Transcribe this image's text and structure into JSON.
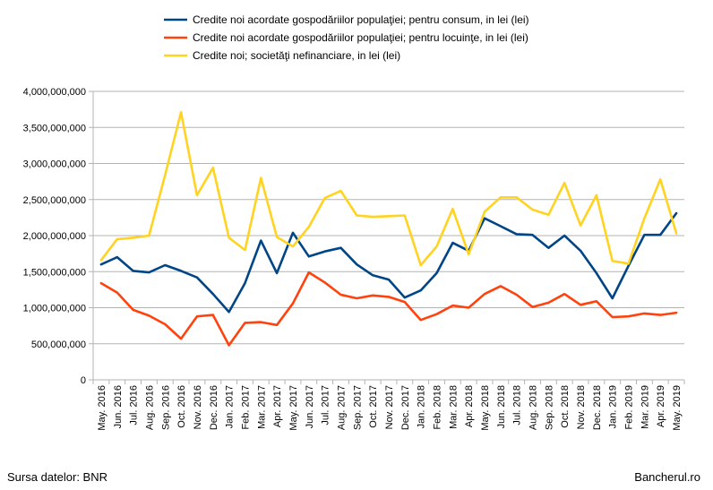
{
  "chart_data": {
    "type": "line",
    "categories": [
      "May. 2016",
      "Jun. 2016",
      "Jul. 2016",
      "Aug. 2016",
      "Sep. 2016",
      "Oct. 2016",
      "Nov. 2016",
      "Dec. 2016",
      "Jan. 2017",
      "Feb. 2017",
      "Mar. 2017",
      "Apr. 2017",
      "May. 2017",
      "Jun. 2017",
      "Jul. 2017",
      "Aug. 2017",
      "Sep. 2017",
      "Oct. 2017",
      "Nov. 2017",
      "Dec. 2017",
      "Jan. 2018",
      "Feb. 2018",
      "Mar. 2018",
      "Apr. 2018",
      "May. 2018",
      "Jun. 2018",
      "Jul. 2018",
      "Aug. 2018",
      "Sep. 2018",
      "Oct. 2018",
      "Nov. 2018",
      "Dec. 2018",
      "Jan. 2019",
      "Feb. 2019",
      "Mar. 2019",
      "Apr. 2019",
      "May. 2019"
    ],
    "series": [
      {
        "name": "Credite noi acordate gospodăriilor populaţiei; pentru consum, in lei (lei)",
        "color": "#004586",
        "values": [
          1600000000,
          1700000000,
          1510000000,
          1490000000,
          1590000000,
          1510000000,
          1420000000,
          1190000000,
          940000000,
          1340000000,
          1930000000,
          1480000000,
          2040000000,
          1710000000,
          1780000000,
          1830000000,
          1600000000,
          1450000000,
          1390000000,
          1140000000,
          1240000000,
          1480000000,
          1900000000,
          1790000000,
          2240000000,
          2130000000,
          2020000000,
          2010000000,
          1830000000,
          2000000000,
          1790000000,
          1480000000,
          1130000000,
          1580000000,
          2010000000,
          2010000000,
          2310000000
        ]
      },
      {
        "name": "Credite noi acordate gospodăriilor populaţiei; pentru locuinţe, in lei (lei)",
        "color": "#ff420e",
        "values": [
          1340000000,
          1210000000,
          970000000,
          890000000,
          770000000,
          570000000,
          880000000,
          900000000,
          480000000,
          790000000,
          800000000,
          760000000,
          1060000000,
          1490000000,
          1350000000,
          1180000000,
          1130000000,
          1170000000,
          1150000000,
          1080000000,
          830000000,
          910000000,
          1030000000,
          1000000000,
          1190000000,
          1300000000,
          1180000000,
          1010000000,
          1070000000,
          1190000000,
          1040000000,
          1090000000,
          870000000,
          880000000,
          920000000,
          900000000,
          930000000
        ]
      },
      {
        "name": "Credite noi; societăţi nefinanciare, in lei (lei)",
        "color": "#ffd320",
        "values": [
          1660000000,
          1950000000,
          1970000000,
          2000000000,
          2840000000,
          3710000000,
          2560000000,
          2940000000,
          1970000000,
          1800000000,
          2800000000,
          1980000000,
          1850000000,
          2120000000,
          2520000000,
          2620000000,
          2280000000,
          2260000000,
          2270000000,
          2280000000,
          1590000000,
          1850000000,
          2370000000,
          1740000000,
          2330000000,
          2530000000,
          2530000000,
          2360000000,
          2290000000,
          2730000000,
          2140000000,
          2560000000,
          1650000000,
          1610000000,
          2240000000,
          2780000000,
          2030000000
        ]
      }
    ],
    "yticks": [
      "0",
      "500,000,000",
      "1,000,000,000",
      "1,500,000,000",
      "2,000,000,000",
      "2,500,000,000",
      "3,000,000,000",
      "3,500,000,000",
      "4,000,000,000"
    ],
    "ylim": [
      0,
      4000000000
    ],
    "grid": true,
    "legend": "top"
  },
  "footer": {
    "source": "Sursa datelor: BNR",
    "site": "Bancherul.ro"
  }
}
